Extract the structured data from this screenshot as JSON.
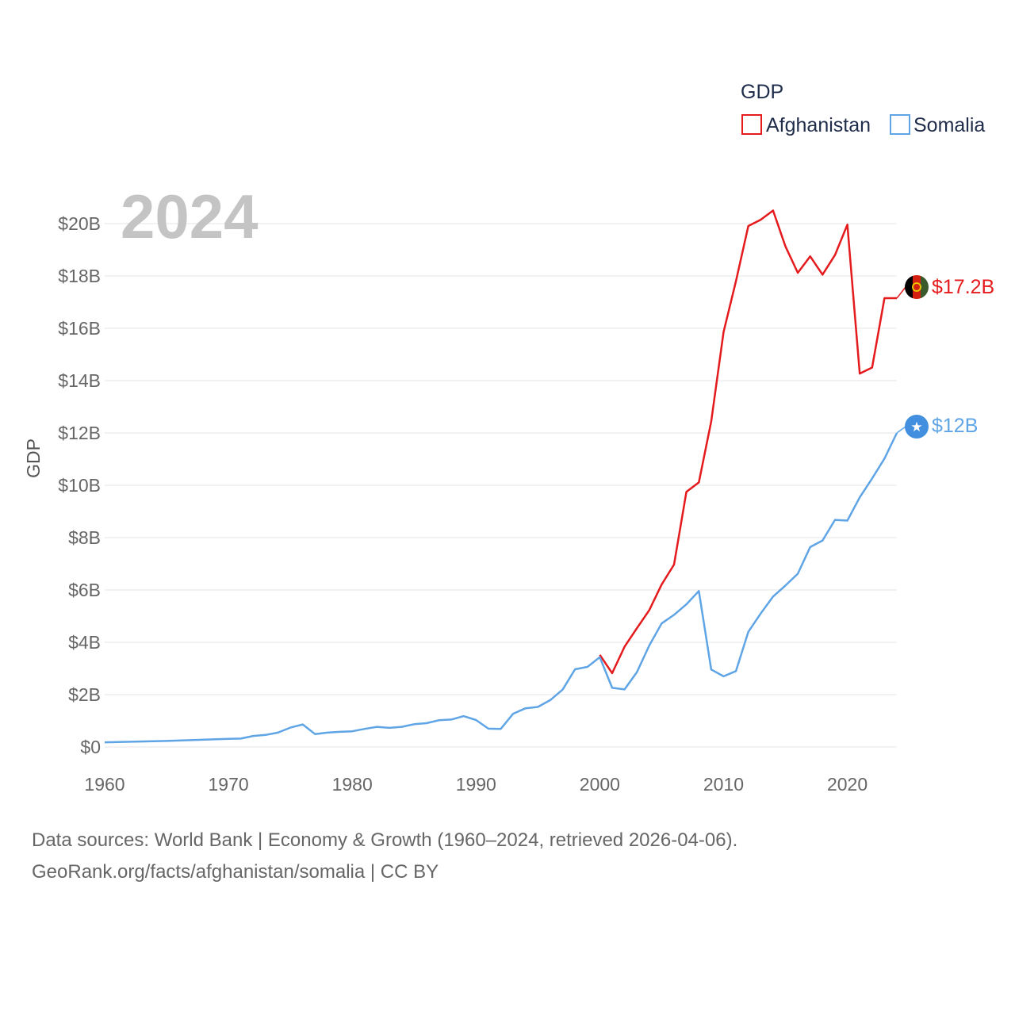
{
  "chart_data": {
    "type": "line",
    "title": "GDP",
    "year_display": "2024",
    "ylabel": "GDP",
    "xlabel": "",
    "xlim": [
      1960,
      2024
    ],
    "ylim": [
      0,
      21
    ],
    "x_ticks": [
      1960,
      1970,
      1980,
      1990,
      2000,
      2010,
      2020
    ],
    "x_tick_labels": [
      "1960",
      "1970",
      "1980",
      "1990",
      "2000",
      "2010",
      "2020"
    ],
    "y_ticks": [
      0,
      2,
      4,
      6,
      8,
      10,
      12,
      14,
      16,
      18,
      20
    ],
    "y_tick_labels": [
      "$0",
      "$2B",
      "$4B",
      "$6B",
      "$8B",
      "$10B",
      "$12B",
      "$14B",
      "$16B",
      "$18B",
      "$20B"
    ],
    "grid": true,
    "legend_position": "top-right",
    "series": [
      {
        "name": "Afghanistan",
        "color": "#e41a1c",
        "end_label": "$17.2B",
        "flag_icon": "afghanistan-flag-icon",
        "points": [
          [
            2000,
            3.52
          ],
          [
            2001,
            2.82
          ],
          [
            2002,
            3.83
          ],
          [
            2003,
            4.54
          ],
          [
            2004,
            5.23
          ],
          [
            2005,
            6.21
          ],
          [
            2006,
            6.97
          ],
          [
            2007,
            9.75
          ],
          [
            2008,
            10.11
          ],
          [
            2009,
            12.44
          ],
          [
            2010,
            15.86
          ],
          [
            2011,
            17.8
          ],
          [
            2012,
            19.91
          ],
          [
            2013,
            20.15
          ],
          [
            2014,
            20.5
          ],
          [
            2015,
            19.13
          ],
          [
            2016,
            18.12
          ],
          [
            2017,
            18.75
          ],
          [
            2018,
            18.05
          ],
          [
            2019,
            18.8
          ],
          [
            2020,
            19.96
          ],
          [
            2021,
            14.27
          ],
          [
            2022,
            14.5
          ],
          [
            2023,
            17.15
          ],
          [
            2024,
            17.15
          ]
        ]
      },
      {
        "name": "Somalia",
        "color": "#5fa5e6",
        "end_label": "$12B",
        "flag_icon": "somalia-flag-icon",
        "points": [
          [
            1960,
            0.18
          ],
          [
            1965,
            0.23
          ],
          [
            1970,
            0.31
          ],
          [
            1971,
            0.32
          ],
          [
            1972,
            0.42
          ],
          [
            1973,
            0.46
          ],
          [
            1974,
            0.55
          ],
          [
            1975,
            0.74
          ],
          [
            1976,
            0.86
          ],
          [
            1977,
            0.49
          ],
          [
            1978,
            0.55
          ],
          [
            1979,
            0.58
          ],
          [
            1980,
            0.6
          ],
          [
            1981,
            0.69
          ],
          [
            1982,
            0.77
          ],
          [
            1983,
            0.73
          ],
          [
            1984,
            0.77
          ],
          [
            1985,
            0.87
          ],
          [
            1986,
            0.91
          ],
          [
            1987,
            1.02
          ],
          [
            1988,
            1.05
          ],
          [
            1989,
            1.18
          ],
          [
            1990,
            1.03
          ],
          [
            1991,
            0.7
          ],
          [
            1992,
            0.69
          ],
          [
            1993,
            1.27
          ],
          [
            1994,
            1.48
          ],
          [
            1995,
            1.53
          ],
          [
            1996,
            1.79
          ],
          [
            1997,
            2.19
          ],
          [
            1998,
            2.97
          ],
          [
            1999,
            3.06
          ],
          [
            2000,
            3.43
          ],
          [
            2001,
            2.26
          ],
          [
            2002,
            2.2
          ],
          [
            2003,
            2.86
          ],
          [
            2004,
            3.88
          ],
          [
            2005,
            4.72
          ],
          [
            2006,
            5.05
          ],
          [
            2007,
            5.45
          ],
          [
            2008,
            5.96
          ],
          [
            2009,
            2.96
          ],
          [
            2010,
            2.7
          ],
          [
            2011,
            2.9
          ],
          [
            2012,
            4.4
          ],
          [
            2013,
            5.1
          ],
          [
            2014,
            5.75
          ],
          [
            2015,
            6.17
          ],
          [
            2016,
            6.62
          ],
          [
            2017,
            7.64
          ],
          [
            2018,
            7.89
          ],
          [
            2019,
            8.68
          ],
          [
            2020,
            8.65
          ],
          [
            2021,
            9.54
          ],
          [
            2022,
            10.26
          ],
          [
            2023,
            11.02
          ],
          [
            2024,
            12.0
          ]
        ]
      }
    ]
  },
  "footer": {
    "line1": "Data sources: World Bank | Economy & Growth (1960–2024, retrieved 2026-04-06).",
    "line2": "GeoRank.org/facts/afghanistan/somalia | CC BY"
  }
}
